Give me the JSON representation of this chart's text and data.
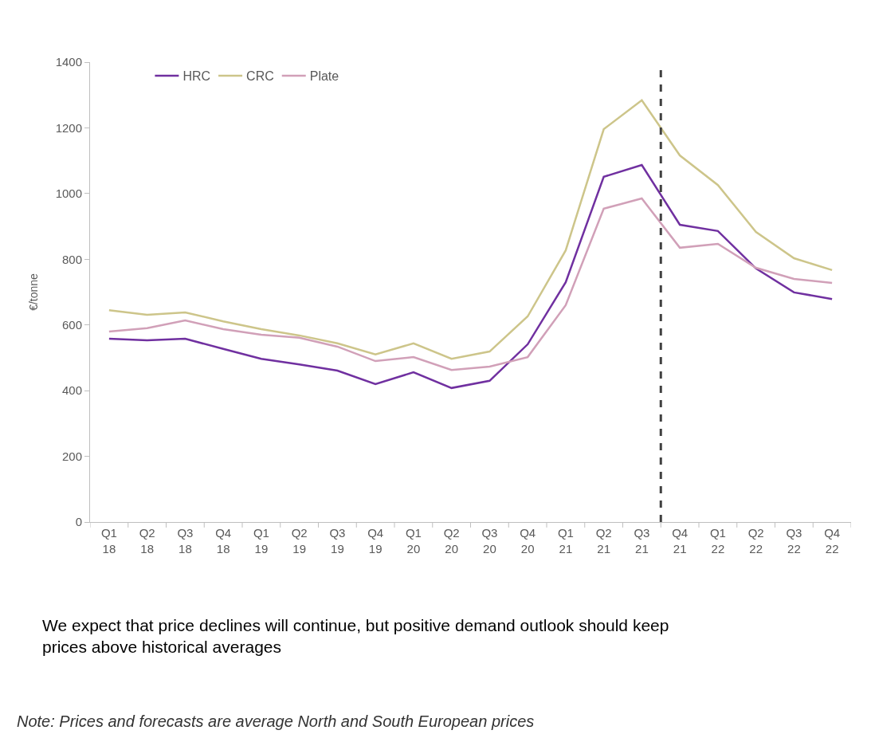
{
  "chart_data": {
    "type": "line",
    "ylabel": "€/tonne",
    "categories": [
      "Q1 18",
      "Q2 18",
      "Q3 18",
      "Q4 18",
      "Q1 19",
      "Q2 19",
      "Q3 19",
      "Q4 19",
      "Q1 20",
      "Q2 20",
      "Q3 20",
      "Q4 20",
      "Q1 21",
      "Q2 21",
      "Q3 21",
      "Q4 21",
      "Q1 22",
      "Q2 22",
      "Q3 22",
      "Q4 22"
    ],
    "series": [
      {
        "name": "HRC",
        "color": "#7030a0",
        "values": [
          558,
          553,
          558,
          527,
          497,
          480,
          461,
          420,
          456,
          408,
          430,
          541,
          730,
          1051,
          1087,
          905,
          886,
          772,
          699,
          679
        ]
      },
      {
        "name": "CRC",
        "color": "#cdc58a",
        "values": [
          645,
          631,
          638,
          611,
          587,
          568,
          544,
          510,
          544,
          497,
          519,
          626,
          827,
          1196,
          1284,
          1116,
          1026,
          883,
          803,
          767
        ]
      },
      {
        "name": "Plate",
        "color": "#d1a0b8",
        "values": [
          580,
          590,
          614,
          587,
          570,
          561,
          534,
          490,
          502,
          463,
          473,
          502,
          660,
          954,
          985,
          835,
          847,
          774,
          740,
          728
        ]
      }
    ],
    "ylim": [
      0,
      1400
    ],
    "yticks": [
      0,
      200,
      400,
      600,
      800,
      1000,
      1200,
      1400
    ],
    "legend": "top left",
    "marker": "none",
    "line_style": "solid",
    "annotations": [
      "We expect that price declines will continue, but positive demand outlook should keep prices above historical averages",
      "Note: Prices and forecasts are average North and South European prices"
    ]
  }
}
